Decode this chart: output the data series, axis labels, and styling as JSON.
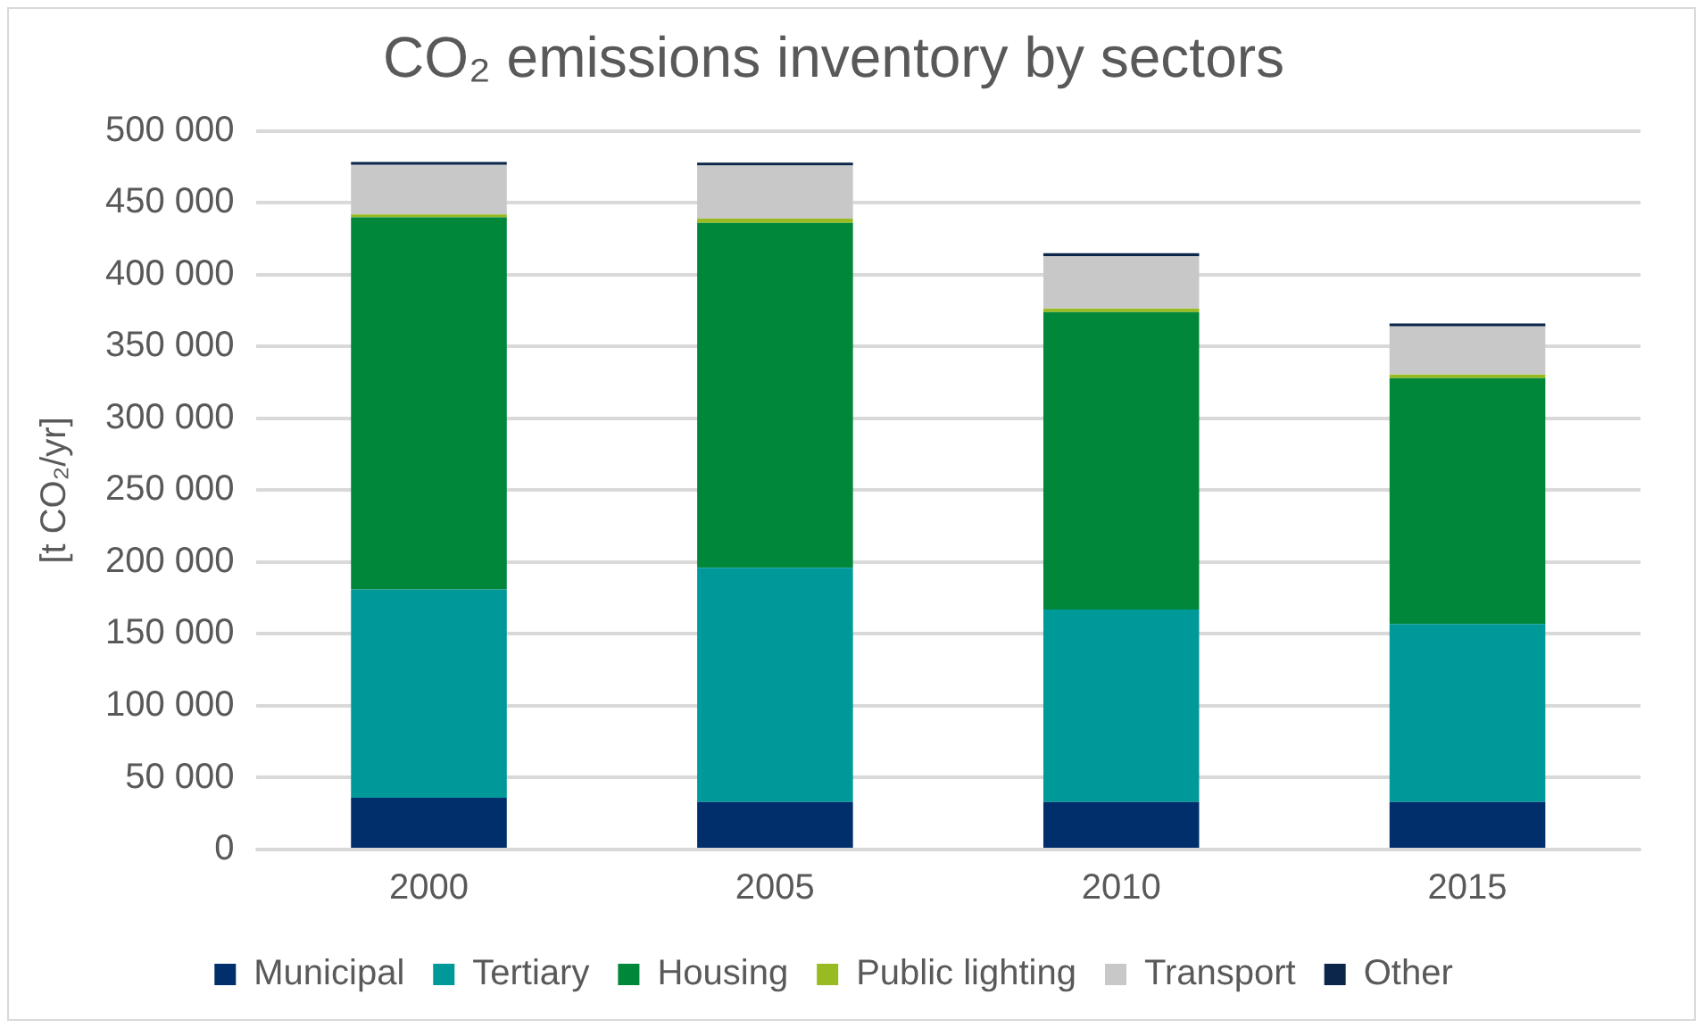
{
  "chart_data": {
    "type": "bar",
    "title": "CO₂ emissions inventory by sectors",
    "ylabel": "[t CO₂/yr]",
    "stacked": true,
    "categories": [
      "2000",
      "2005",
      "2010",
      "2015"
    ],
    "series": [
      {
        "name": "Municipal",
        "color": "#002f6c",
        "values": [
          36000,
          33000,
          33000,
          33000
        ]
      },
      {
        "name": "Tertiary",
        "color": "#009999",
        "values": [
          145000,
          163000,
          134000,
          124000
        ]
      },
      {
        "name": "Housing",
        "color": "#00873a",
        "values": [
          259000,
          240000,
          207000,
          171000
        ]
      },
      {
        "name": "Public lighting",
        "color": "#99bb22",
        "values": [
          2000,
          3000,
          2500,
          2500
        ]
      },
      {
        "name": "Transport",
        "color": "#c8c8c8",
        "values": [
          34500,
          37000,
          36500,
          33500
        ]
      },
      {
        "name": "Other",
        "color": "#0b2648",
        "values": [
          2000,
          2000,
          2000,
          2000
        ]
      }
    ],
    "ylim": [
      0,
      500000
    ],
    "yticks": [
      {
        "value": 0,
        "label": "0"
      },
      {
        "value": 50000,
        "label": "50 000"
      },
      {
        "value": 100000,
        "label": "100 000"
      },
      {
        "value": 150000,
        "label": "150 000"
      },
      {
        "value": 200000,
        "label": "200 000"
      },
      {
        "value": 250000,
        "label": "250 000"
      },
      {
        "value": 300000,
        "label": "300 000"
      },
      {
        "value": 350000,
        "label": "350 000"
      },
      {
        "value": 400000,
        "label": "400 000"
      },
      {
        "value": 450000,
        "label": "450 000"
      },
      {
        "value": 500000,
        "label": "500 000"
      }
    ],
    "grid": "y",
    "legend": "bottom"
  }
}
